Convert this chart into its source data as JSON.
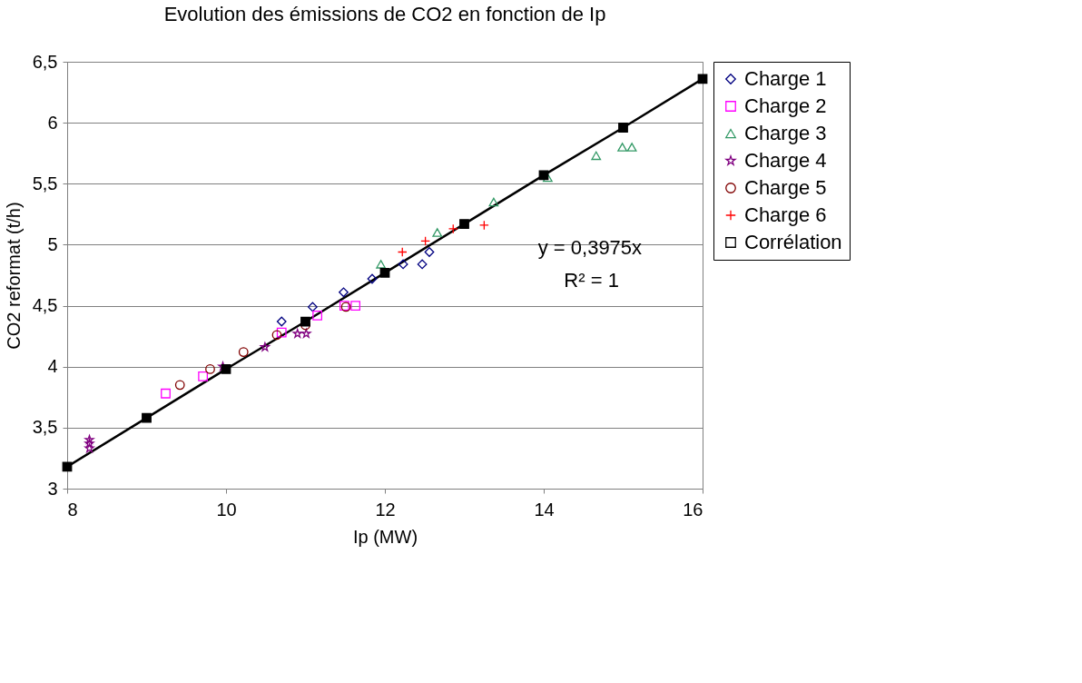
{
  "chart_data": {
    "type": "scatter",
    "title": "Evolution des émissions de CO2 en fonction de Ip",
    "xlabel": "Ip (MW)",
    "ylabel": "CO2 reformat (t/h)",
    "xlim": [
      8,
      16
    ],
    "xticks": [
      8,
      10,
      12,
      14,
      16
    ],
    "ylim": [
      3,
      6.5
    ],
    "yticks": [
      3,
      {
        "value": 3.5,
        "label": "3,5"
      },
      4,
      {
        "value": 4.5,
        "label": "4,5"
      },
      5,
      {
        "value": 5.5,
        "label": "5,5"
      },
      6,
      {
        "value": 6.5,
        "label": "6,5"
      }
    ],
    "grid": "y",
    "legend": "right",
    "annotations": [
      "y = 0,3975x",
      "R² = 1"
    ],
    "series": [
      {
        "name": "Charge 1",
        "color": "#000080",
        "marker": "diamond",
        "x": [
          10.7,
          11.09,
          11.48,
          11.84,
          12.23,
          12.47,
          12.56
        ],
        "values": [
          4.37,
          4.49,
          4.61,
          4.72,
          4.84,
          4.84,
          4.94
        ]
      },
      {
        "name": "Charge 2",
        "color": "#ff00ff",
        "marker": "square",
        "x": [
          9.24,
          9.71,
          10.7,
          11.15,
          11.49,
          11.63
        ],
        "values": [
          3.78,
          3.92,
          4.28,
          4.42,
          4.5,
          4.5
        ]
      },
      {
        "name": "Charge 3",
        "color": "#339966",
        "marker": "triangle",
        "x": [
          11.95,
          12.66,
          13.37,
          14.05,
          14.66,
          14.99,
          15.11
        ],
        "values": [
          4.84,
          5.1,
          5.35,
          5.55,
          5.73,
          5.8,
          5.8
        ]
      },
      {
        "name": "Charge 4",
        "color": "#800080",
        "marker": "star",
        "x": [
          8.28,
          8.28,
          8.28,
          9.96,
          10.49,
          10.9,
          11.01
        ],
        "values": [
          3.33,
          3.37,
          3.4,
          4.0,
          4.16,
          4.27,
          4.27
        ]
      },
      {
        "name": "Charge 5",
        "color": "#800000",
        "marker": "circle",
        "x": [
          9.42,
          9.8,
          10.22,
          10.64,
          11.0,
          11.51
        ],
        "values": [
          3.85,
          3.98,
          4.12,
          4.26,
          4.34,
          4.49
        ]
      },
      {
        "name": "Charge 6",
        "color": "#ff0000",
        "marker": "cross",
        "x": [
          12.22,
          12.51,
          12.86,
          13.25
        ],
        "values": [
          4.94,
          5.03,
          5.13,
          5.16
        ]
      },
      {
        "name": "Corrélation",
        "color": "#000000",
        "type": "line",
        "marker": "square",
        "x": [
          8,
          9,
          10,
          11,
          12,
          13,
          14,
          15,
          16
        ],
        "values": [
          3.18,
          3.58,
          3.98,
          4.37,
          4.77,
          5.17,
          5.57,
          5.96,
          6.36
        ]
      }
    ]
  }
}
